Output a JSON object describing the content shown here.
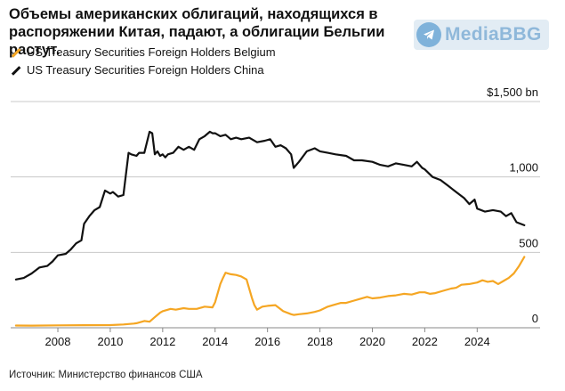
{
  "title": "Объемы американских облигаций, находящихся в распоряжении Китая, падают, а облигации Бельгии растут.",
  "watermark": "MediaBBG",
  "source": "Источник: Министерство финансов США",
  "colors": {
    "belgium": "#f5a623",
    "china": "#111111",
    "grid": "#c8c8c8"
  },
  "chart_data": {
    "type": "line",
    "title": "Объемы американских облигаций, находящихся в распоряжении Китая, падают, а облигации Бельгии растут.",
    "xlabel": "",
    "ylabel": "",
    "ylim": [
      0,
      1500
    ],
    "xlim": [
      2006.2,
      2026.4
    ],
    "y_ticks": [
      0,
      500,
      1000,
      1500
    ],
    "y_tick_labels": [
      "0",
      "500",
      "1,000",
      "$1,500 bn"
    ],
    "x_ticks": [
      2008,
      2010,
      2012,
      2014,
      2016,
      2018,
      2020,
      2022,
      2024
    ],
    "x_tick_labels": [
      "2008",
      "2010",
      "2012",
      "2014",
      "2016",
      "2018",
      "2020",
      "2022",
      "2024"
    ],
    "legend_position": "top-left",
    "series": [
      {
        "name": "US Treasury Securities Foreign Holders Belgium",
        "color": "#f5a623",
        "x": [
          2006.4,
          2007.0,
          2008.0,
          2009.0,
          2010.0,
          2010.5,
          2010.9,
          2011.0,
          2011.3,
          2011.5,
          2011.7,
          2011.9,
          2012.0,
          2012.3,
          2012.5,
          2012.8,
          2013.0,
          2013.3,
          2013.6,
          2013.9,
          2014.0,
          2014.1,
          2014.2,
          2014.3,
          2014.4,
          2014.6,
          2014.8,
          2015.0,
          2015.2,
          2015.4,
          2015.5,
          2015.6,
          2015.8,
          2016.0,
          2016.3,
          2016.6,
          2016.9,
          2017.0,
          2017.2,
          2017.5,
          2017.8,
          2018.0,
          2018.3,
          2018.5,
          2018.8,
          2019.0,
          2019.3,
          2019.5,
          2019.8,
          2020.0,
          2020.3,
          2020.6,
          2020.9,
          2021.2,
          2021.5,
          2021.8,
          2022.0,
          2022.2,
          2022.4,
          2022.7,
          2023.0,
          2023.2,
          2023.4,
          2023.7,
          2024.0,
          2024.2,
          2024.4,
          2024.6,
          2024.8,
          2025.0,
          2025.2,
          2025.4,
          2025.6,
          2025.8
        ],
        "values": [
          15,
          14,
          16,
          17,
          18,
          22,
          28,
          30,
          45,
          40,
          70,
          100,
          110,
          125,
          120,
          130,
          125,
          125,
          140,
          135,
          170,
          230,
          290,
          330,
          365,
          355,
          350,
          340,
          320,
          200,
          150,
          120,
          140,
          145,
          150,
          110,
          90,
          85,
          90,
          95,
          105,
          115,
          140,
          150,
          165,
          165,
          180,
          190,
          205,
          195,
          200,
          210,
          215,
          225,
          220,
          235,
          235,
          225,
          230,
          245,
          260,
          265,
          285,
          290,
          300,
          315,
          305,
          310,
          290,
          310,
          330,
          360,
          410,
          470
        ]
      },
      {
        "name": "US Treasury Securities Foreign Holders China",
        "color": "#111111",
        "x": [
          2006.4,
          2006.7,
          2007.0,
          2007.3,
          2007.6,
          2007.8,
          2008.0,
          2008.3,
          2008.5,
          2008.7,
          2008.9,
          2009.0,
          2009.2,
          2009.4,
          2009.6,
          2009.8,
          2010.0,
          2010.1,
          2010.3,
          2010.5,
          2010.7,
          2010.8,
          2011.0,
          2011.1,
          2011.3,
          2011.5,
          2011.6,
          2011.7,
          2011.8,
          2011.9,
          2012.0,
          2012.1,
          2012.2,
          2012.4,
          2012.6,
          2012.8,
          2013.0,
          2013.2,
          2013.4,
          2013.6,
          2013.8,
          2013.9,
          2014.0,
          2014.2,
          2014.4,
          2014.6,
          2014.8,
          2015.0,
          2015.3,
          2015.6,
          2015.9,
          2016.1,
          2016.3,
          2016.5,
          2016.7,
          2016.9,
          2017.0,
          2017.2,
          2017.5,
          2017.8,
          2018.0,
          2018.3,
          2018.6,
          2019.0,
          2019.3,
          2019.6,
          2020.0,
          2020.3,
          2020.6,
          2020.9,
          2021.2,
          2021.5,
          2021.7,
          2021.9,
          2022.0,
          2022.3,
          2022.6,
          2022.9,
          2023.2,
          2023.5,
          2023.7,
          2023.9,
          2024.0,
          2024.3,
          2024.6,
          2024.9,
          2025.1,
          2025.3,
          2025.5,
          2025.8
        ],
        "values": [
          320,
          330,
          360,
          400,
          410,
          440,
          480,
          490,
          520,
          560,
          580,
          690,
          740,
          780,
          800,
          910,
          890,
          900,
          870,
          880,
          1160,
          1150,
          1140,
          1160,
          1160,
          1300,
          1290,
          1150,
          1170,
          1140,
          1150,
          1130,
          1150,
          1160,
          1200,
          1180,
          1200,
          1180,
          1250,
          1270,
          1300,
          1290,
          1290,
          1270,
          1280,
          1250,
          1260,
          1250,
          1260,
          1230,
          1240,
          1250,
          1200,
          1210,
          1190,
          1150,
          1060,
          1100,
          1170,
          1190,
          1170,
          1160,
          1150,
          1140,
          1110,
          1110,
          1100,
          1080,
          1070,
          1090,
          1080,
          1070,
          1100,
          1060,
          1050,
          1000,
          980,
          940,
          900,
          860,
          820,
          850,
          790,
          770,
          780,
          770,
          740,
          760,
          700,
          680
        ]
      }
    ]
  }
}
